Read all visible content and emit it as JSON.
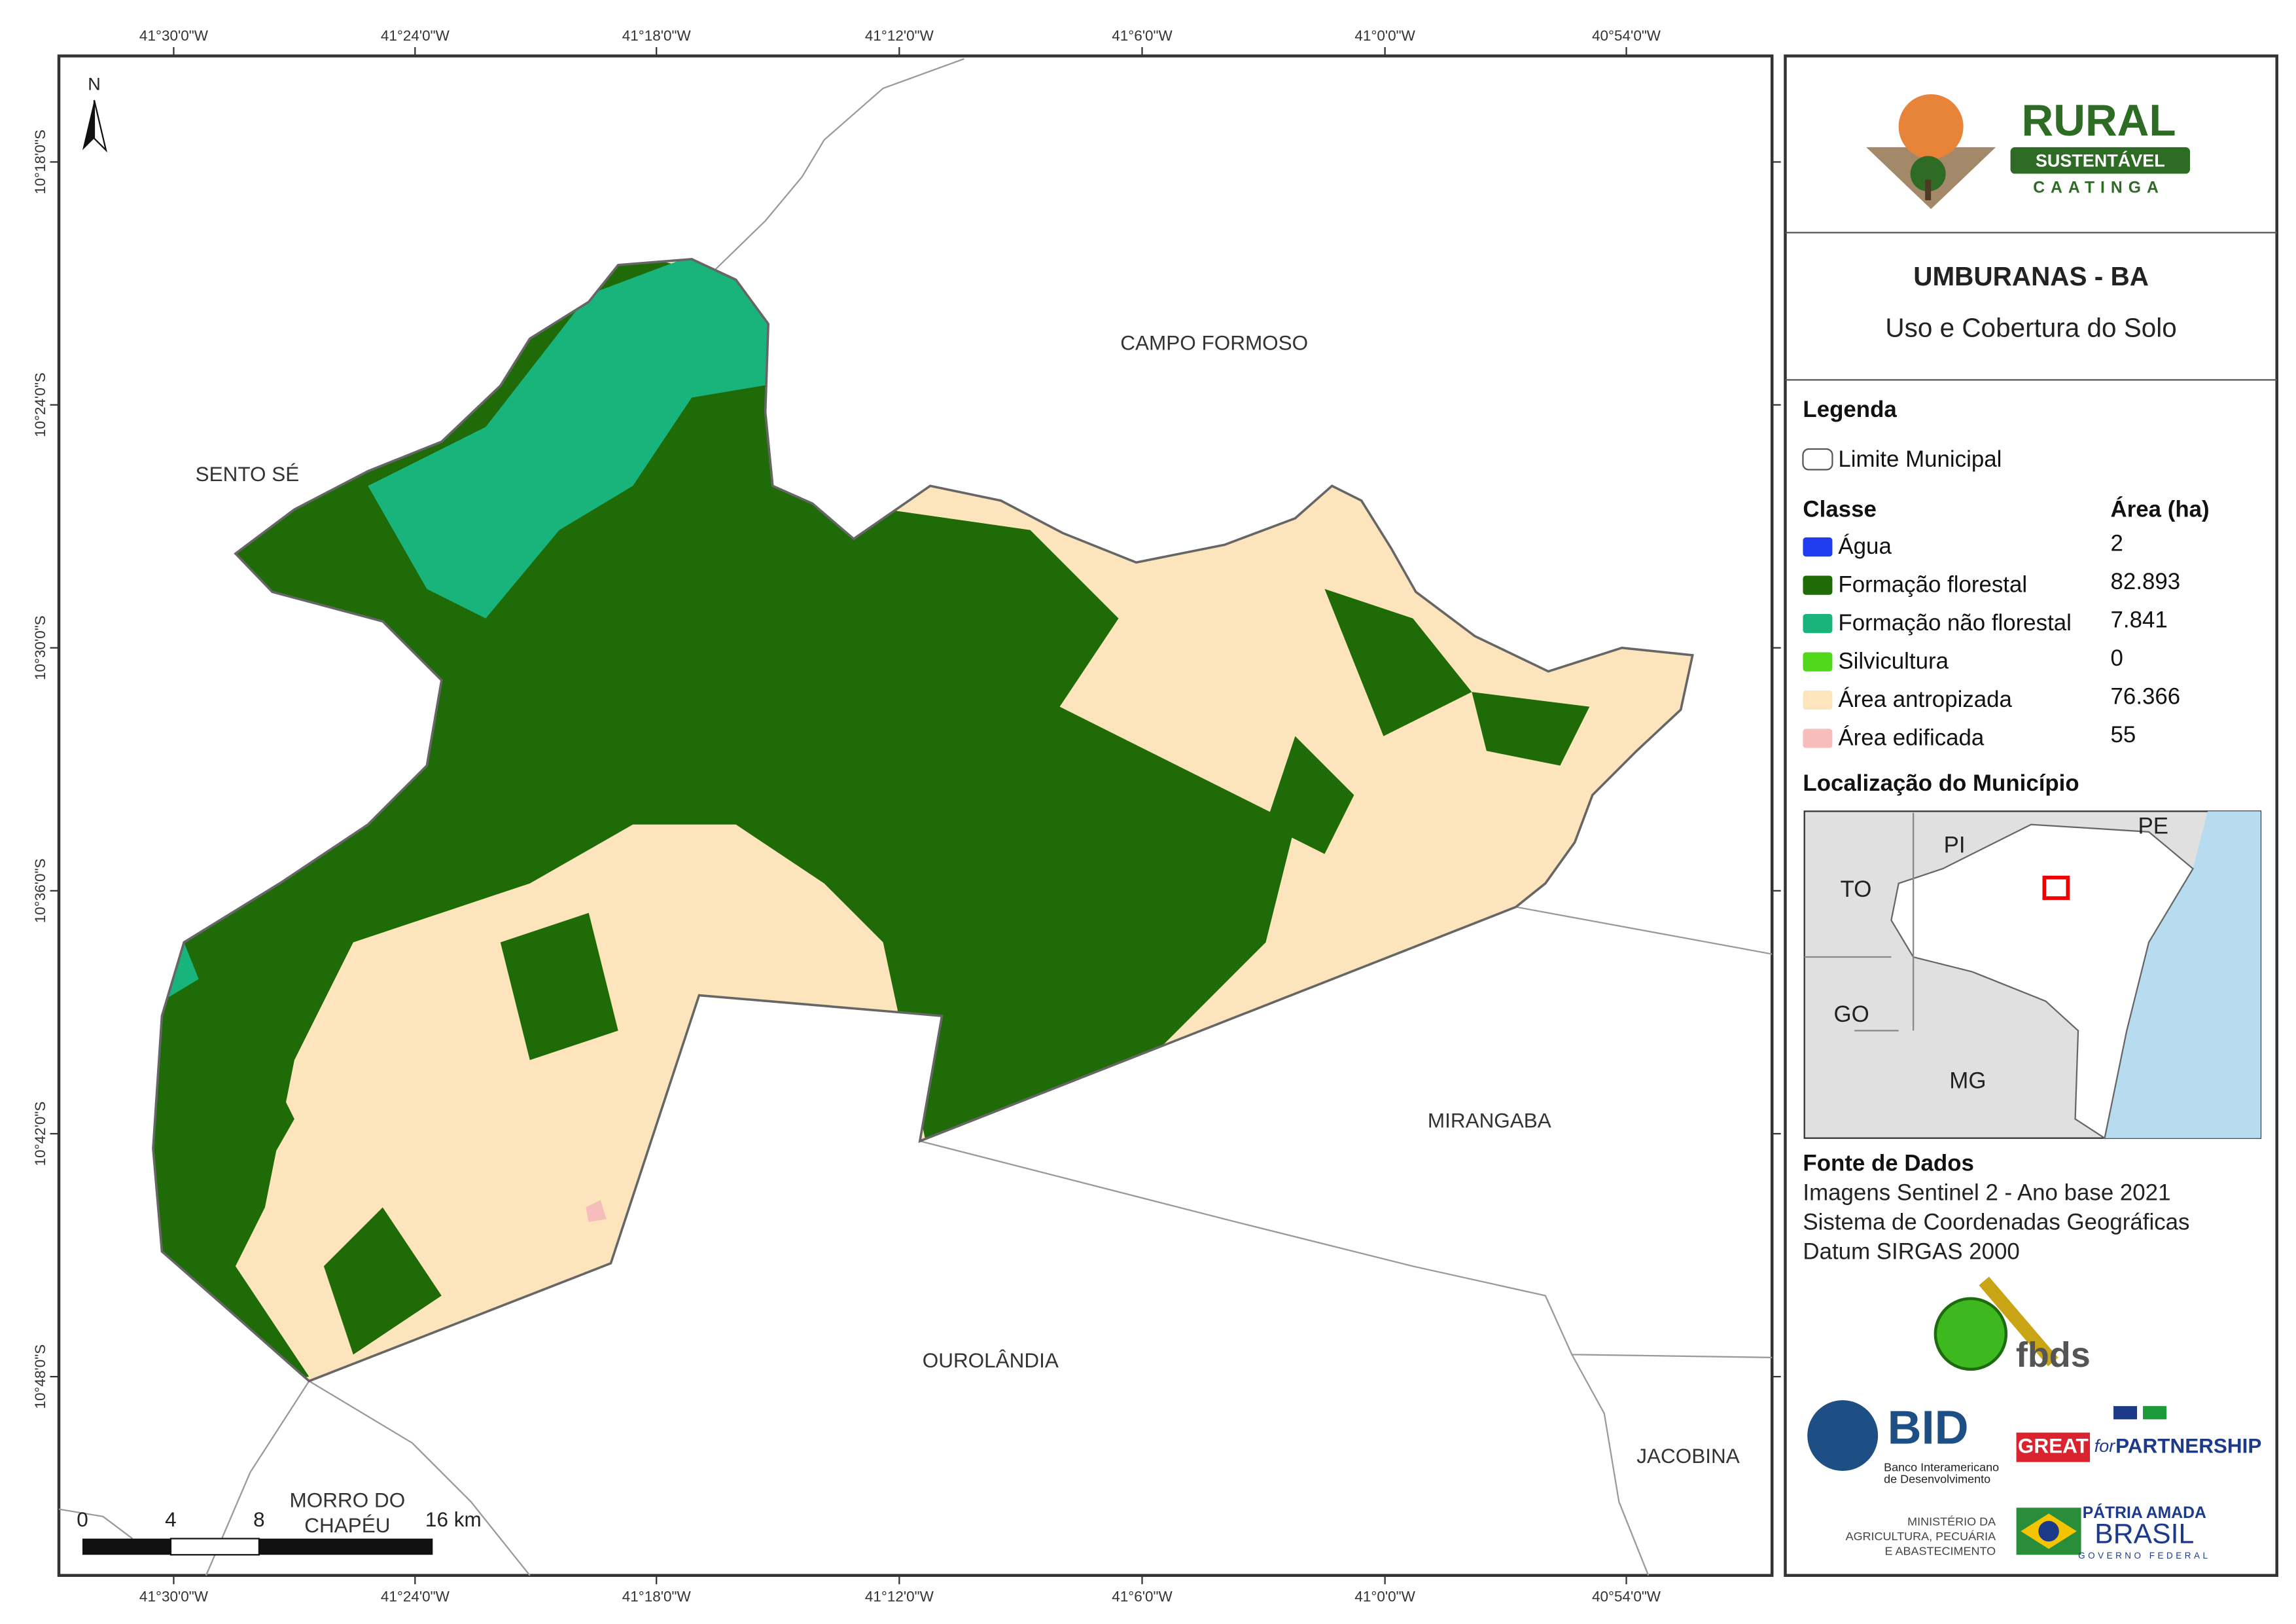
{
  "map": {
    "x_labels": [
      "41°30'0\"W",
      "41°24'0\"W",
      "41°18'0\"W",
      "41°12'0\"W",
      "41°6'0\"W",
      "41°0'0\"W",
      "40°54'0\"W"
    ],
    "y_labels": [
      "10°18'0\"S",
      "10°24'0\"S",
      "10°30'0\"S",
      "10°36'0\"S",
      "10°42'0\"S",
      "10°48'0\"S"
    ],
    "north": "N",
    "places": [
      "CAMPO FORMOSO",
      "SENTO SÉ",
      "MIRANGABA",
      "OUROLÂNDIA",
      "JACOBINA"
    ],
    "place_two_lines": [
      "MORRO DO",
      "CHAPÉU"
    ],
    "scale_labels": [
      "0",
      "4",
      "8",
      "16 km"
    ]
  },
  "panel": {
    "logo": {
      "title": "RURAL",
      "subtitle": "SUSTENTÁVEL",
      "tagline": "CAATINGA"
    },
    "title": "UMBURANAS - BA",
    "subtitle": "Uso e Cobertura do Solo",
    "legend_title": "Legenda",
    "boundary": "Limite Municipal",
    "class_header": "Classe",
    "area_header": "Área (ha)",
    "classes": [
      {
        "name": "Água",
        "area": "2",
        "color": "#1f3cf0"
      },
      {
        "name": "Formação florestal",
        "area": "82.893",
        "color": "#1e6b08"
      },
      {
        "name": "Formação não florestal",
        "area": "7.841",
        "color": "#19b47c"
      },
      {
        "name": "Silvicultura",
        "area": "0",
        "color": "#52d81a"
      },
      {
        "name": "Área antropizada",
        "area": "76.366",
        "color": "#fce5bc"
      },
      {
        "name": "Área edificada",
        "area": "55",
        "color": "#f7bcbc"
      }
    ],
    "location_title": "Localização do Município",
    "states": [
      "PI",
      "PE",
      "TO",
      "GO",
      "MG"
    ],
    "source_title": "Fonte de Dados",
    "sources": [
      "Imagens Sentinel 2 - Ano base 2021",
      "Sistema de Coordenadas Geográficas",
      "Datum SIRGAS 2000"
    ],
    "logos": {
      "fbds": "fbds",
      "bid": "BID",
      "bid_name": [
        "Banco Interamericano",
        "de Desenvolvimento"
      ],
      "great": "GREAT",
      "great_for": "for",
      "great_partnership": "PARTNERSHIP",
      "ministry": [
        "MINISTÉRIO DA",
        "AGRICULTURA, PECUÁRIA",
        "E ABASTECIMENTO"
      ],
      "patria": "PÁTRIA AMADA",
      "brasil": "BRASIL",
      "governo": "GOVERNO FEDERAL"
    }
  }
}
